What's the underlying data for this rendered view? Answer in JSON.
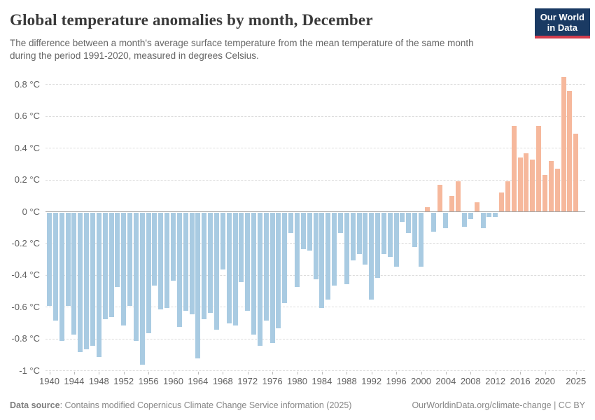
{
  "header": {
    "title": "Global temperature anomalies by month, December",
    "subtitle_lines": [
      "The difference between a month's average surface temperature from the mean temperature of the same month",
      "during the period 1991-2020, measured in degrees Celsius."
    ],
    "logo": {
      "line1": "Our World",
      "line2": "in Data"
    }
  },
  "chart_data": {
    "type": "bar",
    "title": "Global temperature anomalies by month, December",
    "ylabel": "",
    "xlabel": "",
    "unit": "°C",
    "ylim": [
      -1,
      0.9
    ],
    "grid": true,
    "legend": "none",
    "positive_color": "#f6b89c",
    "negative_color": "#a9cbe2",
    "ytick_labels": [
      "0.8 °C",
      "0.6 °C",
      "0.4 °C",
      "0.2 °C",
      "0 °C",
      "-0.2 °C",
      "-0.4 °C",
      "-0.6 °C",
      "-0.8 °C",
      "-1 °C"
    ],
    "ytick_values": [
      0.8,
      0.6,
      0.4,
      0.2,
      0,
      -0.2,
      -0.4,
      -0.6,
      -0.8,
      -1
    ],
    "xtick_years": [
      1940,
      1944,
      1948,
      1952,
      1956,
      1960,
      1964,
      1968,
      1972,
      1976,
      1980,
      1984,
      1988,
      1992,
      1996,
      2000,
      2004,
      2008,
      2012,
      2016,
      2020,
      2025
    ],
    "x": [
      1940,
      1941,
      1942,
      1943,
      1944,
      1945,
      1946,
      1947,
      1948,
      1949,
      1950,
      1951,
      1952,
      1953,
      1954,
      1955,
      1956,
      1957,
      1958,
      1959,
      1960,
      1961,
      1962,
      1963,
      1964,
      1965,
      1966,
      1967,
      1968,
      1969,
      1970,
      1971,
      1972,
      1973,
      1974,
      1975,
      1976,
      1977,
      1978,
      1979,
      1980,
      1981,
      1982,
      1983,
      1984,
      1985,
      1986,
      1987,
      1988,
      1989,
      1990,
      1991,
      1992,
      1993,
      1994,
      1995,
      1996,
      1997,
      1998,
      1999,
      2000,
      2001,
      2002,
      2003,
      2004,
      2005,
      2006,
      2007,
      2008,
      2009,
      2010,
      2011,
      2012,
      2013,
      2014,
      2015,
      2016,
      2017,
      2018,
      2019,
      2020,
      2021,
      2022,
      2023,
      2024,
      2025
    ],
    "values": [
      -0.59,
      -0.68,
      -0.81,
      -0.59,
      -0.77,
      -0.88,
      -0.86,
      -0.84,
      -0.91,
      -0.67,
      -0.66,
      -0.47,
      -0.71,
      -0.59,
      -0.81,
      -0.96,
      -0.76,
      -0.46,
      -0.61,
      -0.6,
      -0.43,
      -0.72,
      -0.62,
      -0.64,
      -0.92,
      -0.67,
      -0.63,
      -0.74,
      -0.36,
      -0.7,
      -0.71,
      -0.44,
      -0.62,
      -0.77,
      -0.84,
      -0.68,
      -0.82,
      -0.73,
      -0.57,
      -0.13,
      -0.47,
      -0.23,
      -0.24,
      -0.42,
      -0.6,
      -0.55,
      -0.46,
      -0.13,
      -0.45,
      -0.3,
      -0.26,
      -0.33,
      -0.55,
      -0.41,
      -0.26,
      -0.28,
      -0.34,
      -0.06,
      -0.13,
      -0.22,
      -0.34,
      0.03,
      -0.12,
      0.17,
      -0.1,
      0.1,
      0.19,
      -0.09,
      -0.04,
      0.06,
      -0.1,
      -0.03,
      -0.03,
      0.12,
      0.19,
      0.54,
      0.34,
      0.37,
      0.33,
      0.54,
      0.23,
      0.32,
      0.27,
      0.85,
      0.76,
      0.49
    ]
  },
  "footer": {
    "source_label": "Data source",
    "source_text": ": Contains modified Copernicus Climate Change Service information (2025)",
    "right_text": "OurWorldinData.org/climate-change | CC BY"
  }
}
